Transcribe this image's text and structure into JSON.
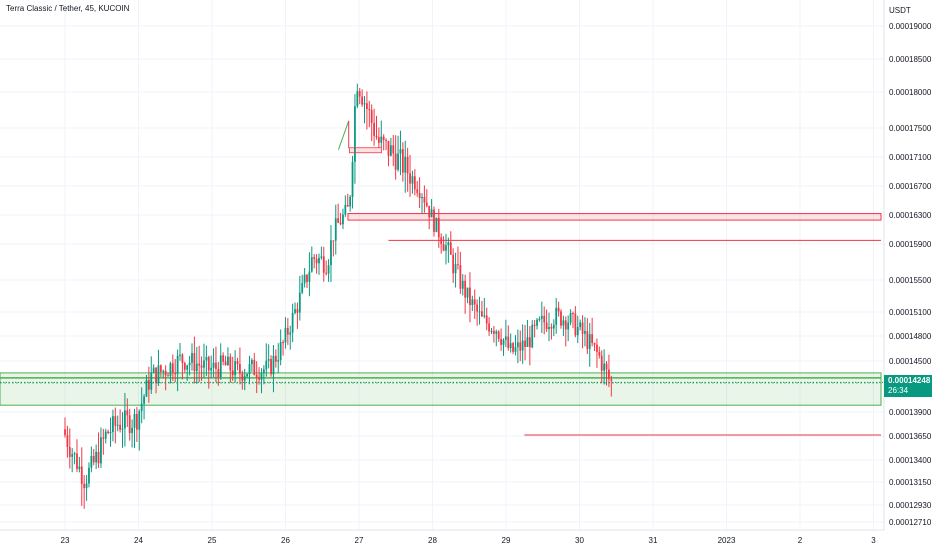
{
  "header": {
    "title": "Terra Classic / Tether, 45, KUCOIN"
  },
  "axis": {
    "unit": "USDT"
  },
  "last_price": {
    "value": "0.00014248",
    "countdown": "26:34"
  },
  "colors": {
    "up": "#089981",
    "down": "#f23645",
    "zone_green": "#4caf50",
    "zone_red": "#f23645"
  },
  "chart_data": {
    "type": "candlestick",
    "x_ticks": [
      "23",
      "24",
      "25",
      "26",
      "27",
      "28",
      "29",
      "30",
      "31",
      "2023",
      "2",
      "3"
    ],
    "y_ticks": [
      "0.00019000",
      "0.00018500",
      "0.00018000",
      "0.00017500",
      "0.00017100",
      "0.00016700",
      "0.00016300",
      "0.00015900",
      "0.00015500",
      "0.00015100",
      "0.00014800",
      "0.00014500",
      "0.00013900",
      "0.00013650",
      "0.00013400",
      "0.00013150",
      "0.00012930",
      "0.00012710"
    ],
    "y_tick_values": [
      0.00019,
      0.000185,
      0.00018,
      0.000175,
      0.000171,
      0.000167,
      0.000163,
      0.000159,
      0.000155,
      0.000151,
      0.000148,
      0.000145,
      0.000139,
      0.0001365,
      0.000134,
      0.0001315,
      0.0001293,
      0.0001271
    ],
    "grid": true,
    "path_x": [
      0.0,
      0.15,
      0.3,
      0.45,
      0.6,
      0.75,
      1.0,
      1.2,
      1.4,
      1.6,
      1.8,
      2.0,
      2.2,
      2.4,
      2.6,
      2.8,
      3.0,
      3.2,
      3.4,
      3.6,
      3.7,
      3.8,
      3.9,
      4.0,
      4.1,
      4.2,
      4.3,
      4.5,
      4.7,
      4.9,
      5.05,
      5.2,
      5.35,
      5.5,
      5.7,
      5.9,
      6.1,
      6.3,
      6.5,
      6.7,
      6.9,
      7.1,
      7.3,
      7.45
    ],
    "path_y": [
      0.0001372,
      0.0001345,
      0.0001318,
      0.000134,
      0.0001368,
      0.0001378,
      0.0001382,
      0.0001432,
      0.000144,
      0.0001452,
      0.0001448,
      0.000144,
      0.0001445,
      0.0001437,
      0.0001441,
      0.000144,
      0.000147,
      0.000152,
      0.0001575,
      0.000157,
      0.000161,
      0.0001625,
      0.000164,
      0.000182,
      0.000179,
      0.000176,
      0.000173,
      0.0001715,
      0.000169,
      0.000166,
      0.000162,
      0.000159,
      0.000156,
      0.000153,
      0.00015,
      0.000149,
      0.000146,
      0.000147,
      0.0001495,
      0.0001505,
      0.00015,
      0.000148,
      0.0001455,
      0.0001425
    ],
    "zones": [
      {
        "kind": "support",
        "from": 0.0001398,
        "to": 0.0001436
      },
      {
        "kind": "resistance",
        "from": 0.0001623,
        "to": 0.0001632
      }
    ],
    "levels": [
      {
        "value": 0.0001595,
        "x_from": 4.4
      },
      {
        "value": 0.0001366,
        "x_from": 6.25
      }
    ]
  }
}
